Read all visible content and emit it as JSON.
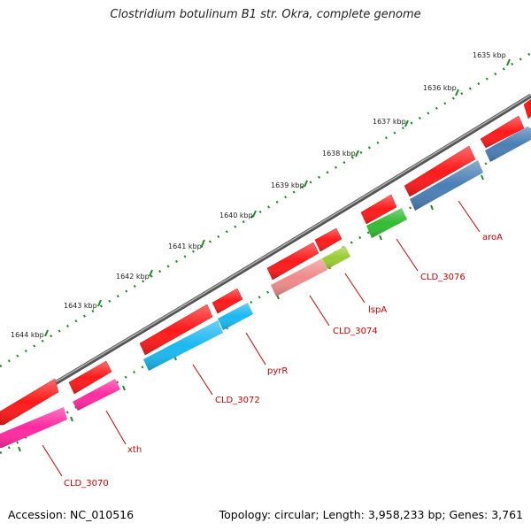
{
  "title": "Clostridium botulinum B1 str. Okra, complete genome",
  "footer": {
    "accession": "Accession: NC_010516",
    "topology": "Topology: circular; Length: 3,958,233 bp; Genes: 3,761"
  },
  "scale_labels": [
    "1635 kbp",
    "1636 kbp",
    "1637 kbp",
    "1638 kbp",
    "1639 kbp",
    "1640 kbp",
    "1641 kbp",
    "1642 kbp",
    "1643 kbp",
    "1644 kbp"
  ],
  "gene_labels": [
    "CLD_3070",
    "xth",
    "CLD_3072",
    "pyrR",
    "CLD_3074",
    "lspA",
    "CLD_3076",
    "aroA"
  ],
  "colors": {
    "backbone": "#7a7a7a",
    "forward_gene": "#ff1a1a",
    "CLD_3070": "#ff2aa0",
    "xth": "#ff2aa0",
    "CLD_3072": "#1ab8f0",
    "pyrR": "#1ab8f0",
    "CLD_3074": "#f08a8a",
    "lspA": "#9acd32",
    "CLD_3076": "#33bb33",
    "aroA": "#4a7fb5",
    "ticks": "#228b22",
    "label": "#cc0000"
  }
}
